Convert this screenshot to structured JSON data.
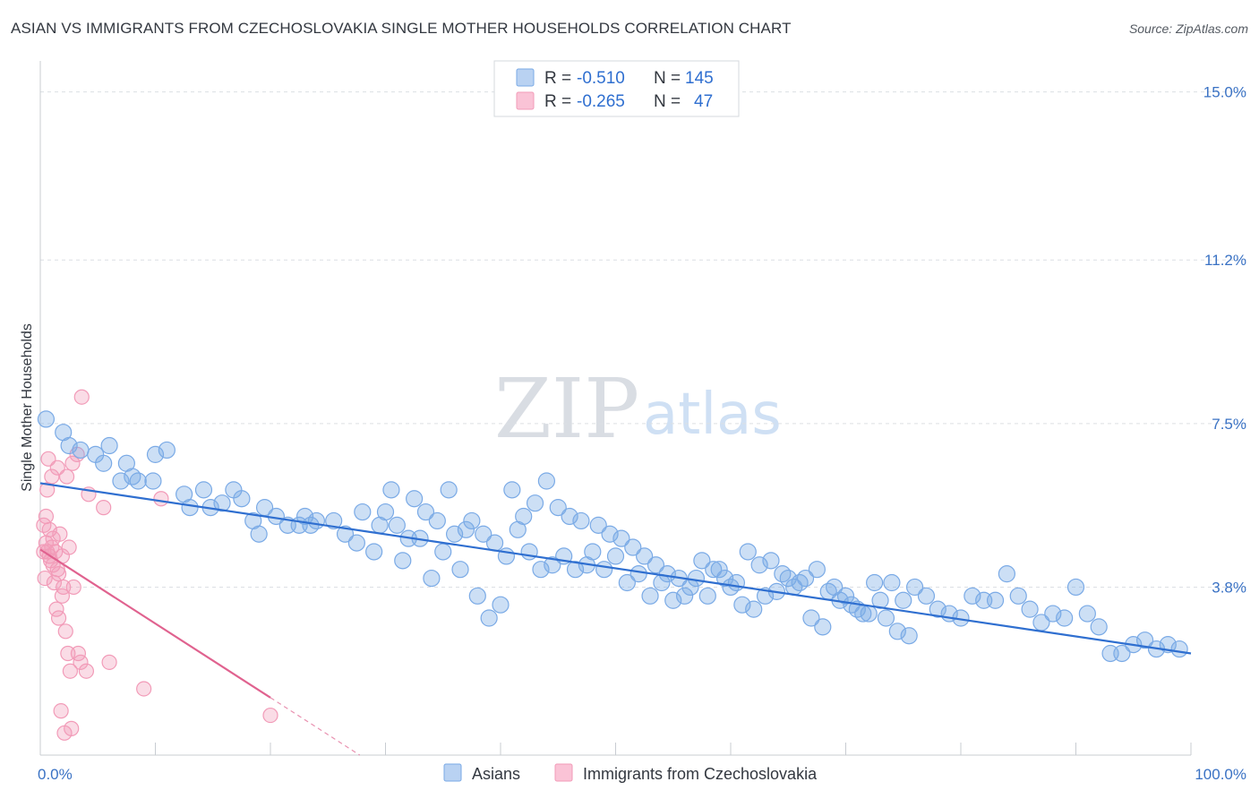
{
  "title": "ASIAN VS IMMIGRANTS FROM CZECHOSLOVAKIA SINGLE MOTHER HOUSEHOLDS CORRELATION CHART",
  "source": "Source: ZipAtlas.com",
  "watermark": {
    "zip": "ZIP",
    "atlas": "atlas"
  },
  "colors": {
    "asians": "#7aaae6",
    "asians_line": "#2f6fd0",
    "czech": "#f29bb8",
    "czech_line": "#e0628f",
    "tick": "#3a72c4"
  },
  "legend": {
    "r_label": "R = ",
    "n_label": "N = ",
    "asians": {
      "r": "-0.510",
      "n": "145"
    },
    "czech": {
      "r": "-0.265",
      "n": "47"
    }
  },
  "chart_data": {
    "type": "scatter",
    "title": "ASIAN VS IMMIGRANTS FROM CZECHOSLOVAKIA SINGLE MOTHER HOUSEHOLDS CORRELATION CHART",
    "ylabel": "Single Mother Households",
    "xlabel": "",
    "xlim": [
      0,
      100
    ],
    "ylim": [
      0,
      15.5
    ],
    "x_tick_labels": [
      "0.0%",
      "100.0%"
    ],
    "y_ticks": [
      3.8,
      7.5,
      11.2,
      15.0
    ],
    "y_tick_labels": [
      "3.8%",
      "7.5%",
      "11.2%",
      "15.0%"
    ],
    "grid": "horizontal dashed",
    "legend_position": "top-center",
    "series": [
      {
        "name": "Asians",
        "r": -0.51,
        "n": 145,
        "trend": {
          "x": [
            0,
            100
          ],
          "y": [
            6.15,
            2.3
          ]
        },
        "points": [
          [
            0.5,
            7.6
          ],
          [
            2.0,
            7.3
          ],
          [
            2.5,
            7.0
          ],
          [
            3.5,
            6.9
          ],
          [
            4.8,
            6.8
          ],
          [
            6.0,
            7.0
          ],
          [
            7.5,
            6.6
          ],
          [
            5.5,
            6.6
          ],
          [
            7.0,
            6.2
          ],
          [
            8.5,
            6.2
          ],
          [
            9.8,
            6.2
          ],
          [
            8.0,
            6.3
          ],
          [
            11.0,
            6.9
          ],
          [
            10.0,
            6.8
          ],
          [
            14.2,
            6.0
          ],
          [
            14.8,
            5.6
          ],
          [
            13.0,
            5.6
          ],
          [
            12.5,
            5.9
          ],
          [
            15.8,
            5.7
          ],
          [
            16.8,
            6.0
          ],
          [
            17.5,
            5.8
          ],
          [
            18.5,
            5.3
          ],
          [
            19.5,
            5.6
          ],
          [
            20.5,
            5.4
          ],
          [
            21.5,
            5.2
          ],
          [
            23.0,
            5.4
          ],
          [
            24.0,
            5.3
          ],
          [
            25.5,
            5.3
          ],
          [
            23.5,
            5.2
          ],
          [
            22.5,
            5.2
          ],
          [
            19.0,
            5.0
          ],
          [
            28.0,
            5.5
          ],
          [
            29.5,
            5.2
          ],
          [
            31.0,
            5.2
          ],
          [
            30.0,
            5.5
          ],
          [
            26.5,
            5.0
          ],
          [
            27.5,
            4.8
          ],
          [
            29.0,
            4.6
          ],
          [
            32.0,
            4.9
          ],
          [
            33.0,
            4.9
          ],
          [
            31.5,
            4.4
          ],
          [
            35.0,
            4.6
          ],
          [
            36.0,
            5.0
          ],
          [
            37.0,
            5.1
          ],
          [
            34.0,
            4.0
          ],
          [
            37.5,
            5.3
          ],
          [
            38.5,
            5.0
          ],
          [
            39.5,
            4.8
          ],
          [
            40.5,
            4.5
          ],
          [
            41.5,
            5.1
          ],
          [
            42.5,
            4.6
          ],
          [
            43.5,
            4.2
          ],
          [
            44.5,
            4.3
          ],
          [
            45.5,
            4.5
          ],
          [
            46.5,
            4.2
          ],
          [
            47.5,
            4.3
          ],
          [
            48.0,
            4.6
          ],
          [
            49.0,
            4.2
          ],
          [
            50.0,
            4.5
          ],
          [
            51.0,
            3.9
          ],
          [
            52.0,
            4.1
          ],
          [
            53.0,
            3.6
          ],
          [
            54.0,
            3.9
          ],
          [
            55.0,
            3.5
          ],
          [
            56.0,
            3.6
          ],
          [
            57.0,
            4.0
          ],
          [
            58.0,
            3.6
          ],
          [
            59.0,
            4.2
          ],
          [
            60.0,
            3.8
          ],
          [
            61.0,
            3.4
          ],
          [
            62.0,
            3.3
          ],
          [
            63.0,
            3.6
          ],
          [
            64.0,
            3.7
          ],
          [
            65.0,
            4.0
          ],
          [
            66.0,
            3.9
          ],
          [
            67.0,
            3.1
          ],
          [
            68.0,
            2.9
          ],
          [
            69.0,
            3.8
          ],
          [
            70.0,
            3.6
          ],
          [
            71.0,
            3.3
          ],
          [
            72.0,
            3.2
          ],
          [
            73.0,
            3.5
          ],
          [
            74.0,
            3.9
          ],
          [
            75.0,
            3.5
          ],
          [
            76.0,
            3.8
          ],
          [
            77.0,
            3.6
          ],
          [
            78.0,
            3.3
          ],
          [
            79.0,
            3.2
          ],
          [
            80.0,
            3.1
          ],
          [
            81.0,
            3.6
          ],
          [
            82.0,
            3.5
          ],
          [
            83.0,
            3.5
          ],
          [
            84.0,
            4.1
          ],
          [
            85.0,
            3.6
          ],
          [
            86.0,
            3.3
          ],
          [
            87.0,
            3.0
          ],
          [
            88.0,
            3.2
          ],
          [
            89.0,
            3.1
          ],
          [
            90.0,
            3.8
          ],
          [
            91.0,
            3.2
          ],
          [
            92.0,
            2.9
          ],
          [
            93.0,
            2.3
          ],
          [
            94.0,
            2.3
          ],
          [
            95.0,
            2.5
          ],
          [
            96.0,
            2.6
          ],
          [
            97.0,
            2.4
          ],
          [
            98.0,
            2.5
          ],
          [
            99.0,
            2.4
          ],
          [
            36.5,
            4.2
          ],
          [
            38.0,
            3.6
          ],
          [
            39.0,
            3.1
          ],
          [
            40.0,
            3.4
          ],
          [
            32.5,
            5.8
          ],
          [
            30.5,
            6.0
          ],
          [
            33.5,
            5.5
          ],
          [
            34.5,
            5.3
          ],
          [
            35.5,
            6.0
          ],
          [
            41.0,
            6.0
          ],
          [
            42.0,
            5.4
          ],
          [
            43.0,
            5.7
          ],
          [
            44.0,
            6.2
          ],
          [
            45.0,
            5.6
          ],
          [
            46.0,
            5.4
          ],
          [
            47.0,
            5.3
          ],
          [
            48.5,
            5.2
          ],
          [
            49.5,
            5.0
          ],
          [
            50.5,
            4.9
          ],
          [
            51.5,
            4.7
          ],
          [
            52.5,
            4.5
          ],
          [
            53.5,
            4.3
          ],
          [
            54.5,
            4.1
          ],
          [
            55.5,
            4.0
          ],
          [
            56.5,
            3.8
          ],
          [
            57.5,
            4.4
          ],
          [
            58.5,
            4.2
          ],
          [
            59.5,
            4.0
          ],
          [
            60.5,
            3.9
          ],
          [
            61.5,
            4.6
          ],
          [
            62.5,
            4.3
          ],
          [
            63.5,
            4.4
          ],
          [
            64.5,
            4.1
          ],
          [
            65.5,
            3.8
          ],
          [
            66.5,
            4.0
          ],
          [
            67.5,
            4.2
          ],
          [
            68.5,
            3.7
          ],
          [
            69.5,
            3.5
          ],
          [
            70.5,
            3.4
          ],
          [
            71.5,
            3.2
          ],
          [
            72.5,
            3.9
          ],
          [
            73.5,
            3.1
          ],
          [
            74.5,
            2.8
          ],
          [
            75.5,
            2.7
          ]
        ]
      },
      {
        "name": "Immigrants from Czechoslovakia",
        "r": -0.265,
        "n": 47,
        "trend": {
          "x": [
            0,
            20
          ],
          "y": [
            4.65,
            1.3
          ]
        },
        "points": [
          [
            0.3,
            5.2
          ],
          [
            0.5,
            4.8
          ],
          [
            0.6,
            4.6
          ],
          [
            0.8,
            4.5
          ],
          [
            1.0,
            4.7
          ],
          [
            1.1,
            4.3
          ],
          [
            0.4,
            4.0
          ],
          [
            0.9,
            4.4
          ],
          [
            1.3,
            4.6
          ],
          [
            1.5,
            4.2
          ],
          [
            1.7,
            5.0
          ],
          [
            1.2,
            3.9
          ],
          [
            1.9,
            3.6
          ],
          [
            2.0,
            3.8
          ],
          [
            1.4,
            3.3
          ],
          [
            1.6,
            3.1
          ],
          [
            2.2,
            2.8
          ],
          [
            2.4,
            2.3
          ],
          [
            2.6,
            1.9
          ],
          [
            1.8,
            1.0
          ],
          [
            2.1,
            0.5
          ],
          [
            2.7,
            0.6
          ],
          [
            3.3,
            2.3
          ],
          [
            3.5,
            2.1
          ],
          [
            4.0,
            1.9
          ],
          [
            2.9,
            3.8
          ],
          [
            0.7,
            6.7
          ],
          [
            1.0,
            6.3
          ],
          [
            0.6,
            6.0
          ],
          [
            1.5,
            6.5
          ],
          [
            2.3,
            6.3
          ],
          [
            2.8,
            6.6
          ],
          [
            3.2,
            6.8
          ],
          [
            4.2,
            5.9
          ],
          [
            5.5,
            5.6
          ],
          [
            3.6,
            8.1
          ],
          [
            0.5,
            5.4
          ],
          [
            0.8,
            5.1
          ],
          [
            1.1,
            4.9
          ],
          [
            6.0,
            2.1
          ],
          [
            9.0,
            1.5
          ],
          [
            10.5,
            5.8
          ],
          [
            20.0,
            0.9
          ],
          [
            1.6,
            4.1
          ],
          [
            2.5,
            4.7
          ],
          [
            0.3,
            4.6
          ],
          [
            1.9,
            4.5
          ]
        ]
      }
    ]
  },
  "bottom_legend": [
    "Asians",
    "Immigrants from Czechoslovakia"
  ]
}
